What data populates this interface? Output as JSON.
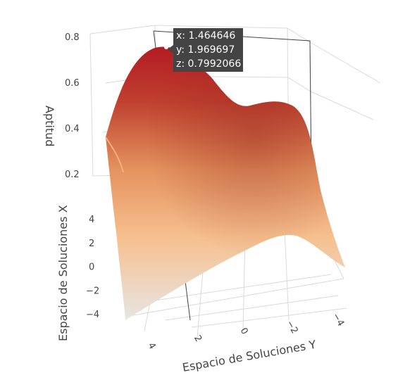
{
  "chart_data": {
    "type": "surface3d",
    "title": "",
    "axes": {
      "x": {
        "title": "Espacio de Soluciones X",
        "ticks": [
          4,
          2,
          0,
          -2,
          -4
        ],
        "tick_labels": [
          "4",
          "2",
          "0",
          "−2",
          "−4"
        ],
        "range": [
          -5,
          5
        ]
      },
      "y": {
        "title": "Espacio de Soluciones Y",
        "ticks": [
          4,
          2,
          0,
          -2,
          -4
        ],
        "tick_labels": [
          "4",
          "2",
          "0",
          "−2",
          "−4"
        ],
        "range": [
          -5,
          5
        ]
      },
      "z": {
        "title": "Aptitud",
        "ticks": [
          0.2,
          0.4,
          0.6,
          0.8
        ],
        "tick_labels": [
          "0.2",
          "0.4",
          "0.6",
          "0.8"
        ],
        "range": [
          0.1,
          0.82
        ]
      }
    },
    "surface_shape": {
      "description_values": "Aptitud surface with a global maximum near x≈1.46, y≈1.97 (z≈0.80) and a secondary bump near the far corner",
      "peaks": [
        {
          "x": 1.464646,
          "y": 1.969697,
          "z": 0.7992066
        }
      ]
    },
    "colorscale": [
      "#e7e5e4",
      "#f6c08f",
      "#e4935e",
      "#c0402f",
      "#b31b23"
    ],
    "grid": true,
    "hover": {
      "x_label": "x: 1.464646",
      "y_label": "y: 1.969697",
      "z_label": "z: 0.7992066"
    }
  }
}
